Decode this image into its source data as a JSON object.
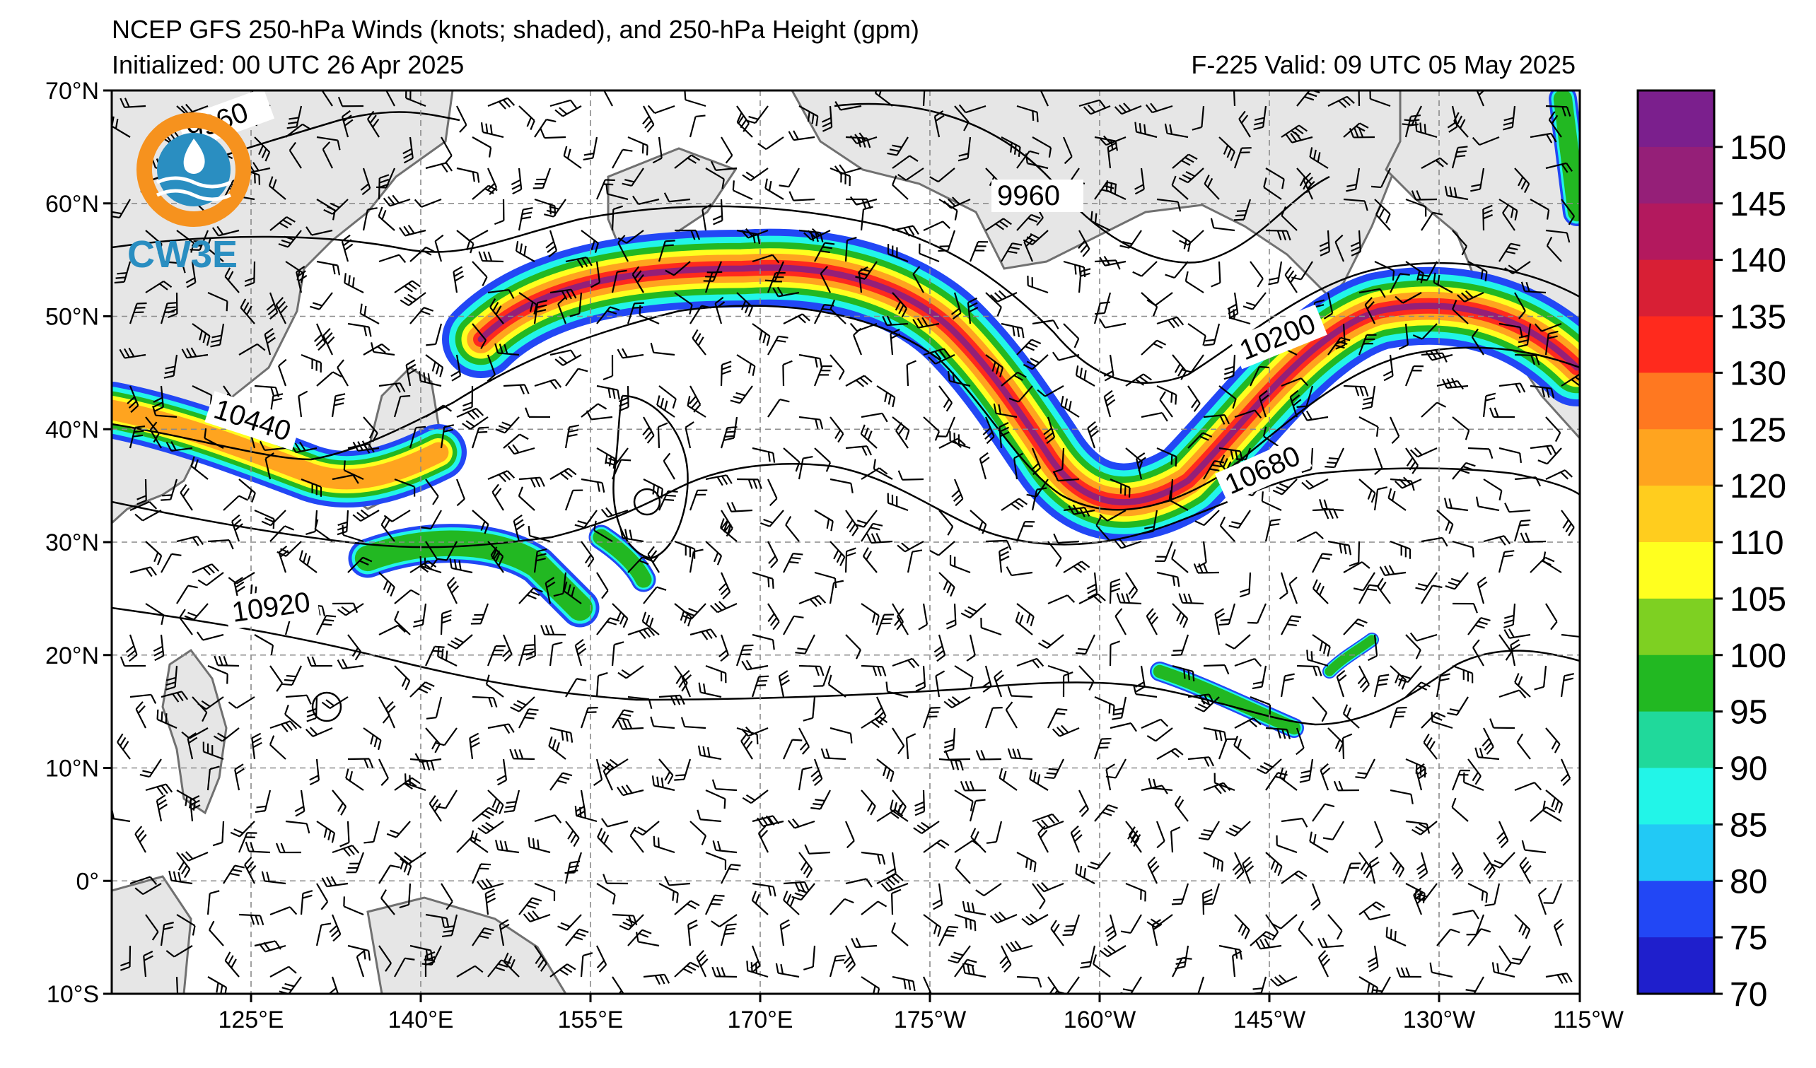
{
  "title": {
    "line1": "NCEP GFS 250-hPa Winds (knots; shaded), and 250-hPa Height (gpm)",
    "initialized": "Initialized: 00 UTC 26 Apr 2025",
    "valid": "F-225  Valid: 09 UTC 05 May 2025"
  },
  "logo": {
    "text": "CW3E",
    "color": "#2a8ec1",
    "ring_color": "#f6921e"
  },
  "lat_labels": [
    "70°N",
    "60°N",
    "50°N",
    "40°N",
    "30°N",
    "20°N",
    "10°N",
    "0°",
    "10°S"
  ],
  "lon_labels": [
    "125°E",
    "140°E",
    "155°E",
    "170°E",
    "175°W",
    "160°W",
    "145°W",
    "130°W",
    "115°W"
  ],
  "contour_labels": [
    "9960",
    "9960",
    "10200",
    "10440",
    "10680",
    "10920"
  ],
  "colorbar": {
    "ticks": [
      "150",
      "145",
      "140",
      "135",
      "130",
      "125",
      "120",
      "110",
      "105",
      "100",
      "95",
      "90",
      "85",
      "80",
      "75",
      "70"
    ],
    "colors": [
      "#7b1f8d",
      "#951f78",
      "#b3195e",
      "#d81f35",
      "#ff2a1d",
      "#ff7820",
      "#ffa41f",
      "#ffcd1e",
      "#ffff1f",
      "#7ed022",
      "#22b822",
      "#20d99b",
      "#22f5e8",
      "#22c9f5",
      "#2247f5",
      "#1f1fcc"
    ]
  },
  "jet_colors": {
    "outer": "#2247f5",
    "cyan": "#22f5e8",
    "green": "#22b822",
    "yellow": "#ffff1f",
    "orange": "#ffa41f",
    "red": "#ff2a1d",
    "core": "#951f78"
  },
  "land_color": "#e6e6e6"
}
